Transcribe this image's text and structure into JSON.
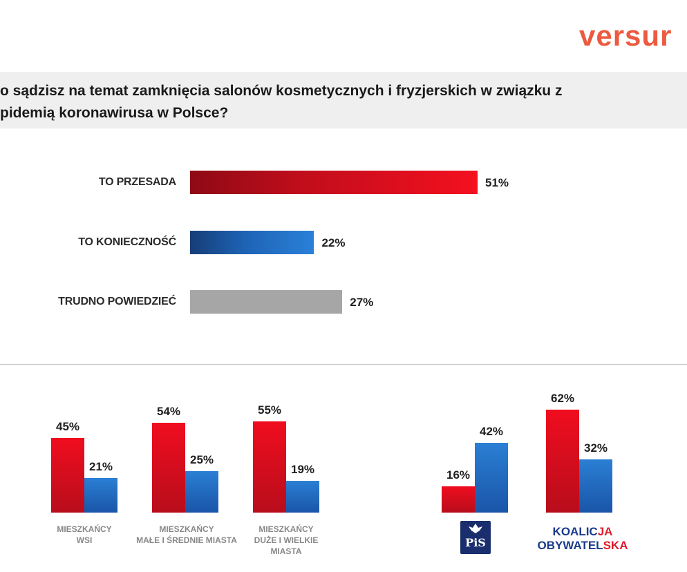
{
  "logo": {
    "text": "versur"
  },
  "question": {
    "line1": "o sądzisz na temat zamknięcia salonów kosmetycznych i fryzjerskich w związku z",
    "line2": "pidemią koronawirusa w Polsce?"
  },
  "colors": {
    "red": "#e8101f",
    "blue": "#1e6ec2",
    "gray": "#a6a6a6",
    "brand": "#ec5a3f"
  },
  "chart_data": [
    {
      "type": "bar",
      "orientation": "horizontal",
      "categories": [
        "TO PRZESADA",
        "TO KONIECZNOŚĆ",
        "TRUDNO POWIEDZIEĆ"
      ],
      "values": [
        51,
        22,
        27
      ],
      "value_labels": [
        "51%",
        "22%",
        "27%"
      ],
      "xlim": [
        0,
        100
      ],
      "grid": false
    },
    {
      "type": "bar",
      "orientation": "vertical",
      "categories": [
        "MIESZKAŃCY WSI",
        "MIESZKAŃCY MAŁE I ŚREDNIE MIASTA",
        "MIESZKAŃCY DUŻE I WIELKIE MIASTA",
        "PiS",
        "KOALICJA OBYWATELSKA"
      ],
      "category_lines": [
        [
          "MIESZKAŃCY",
          "WSI"
        ],
        [
          "MIESZKAŃCY",
          "MAŁE I ŚREDNIE MIASTA"
        ],
        [
          "MIESZKAŃCY",
          "DUŻE I WIELKIE",
          "MIASTA"
        ]
      ],
      "series": [
        {
          "values": [
            45,
            54,
            55,
            16,
            62
          ],
          "labels": [
            "45%",
            "54%",
            "55%",
            "16%",
            "62%"
          ]
        },
        {
          "values": [
            21,
            25,
            19,
            42,
            32
          ],
          "labels": [
            "21%",
            "25%",
            "19%",
            "42%",
            "32%"
          ]
        }
      ],
      "ylim": [
        0,
        100
      ],
      "grid": false
    }
  ],
  "party_logos": {
    "pis": {
      "text": "PiS"
    },
    "ko": {
      "part1": "KOALIC",
      "part2": "JA",
      "part3": "OBYWATEL",
      "part4": "SKA"
    }
  }
}
